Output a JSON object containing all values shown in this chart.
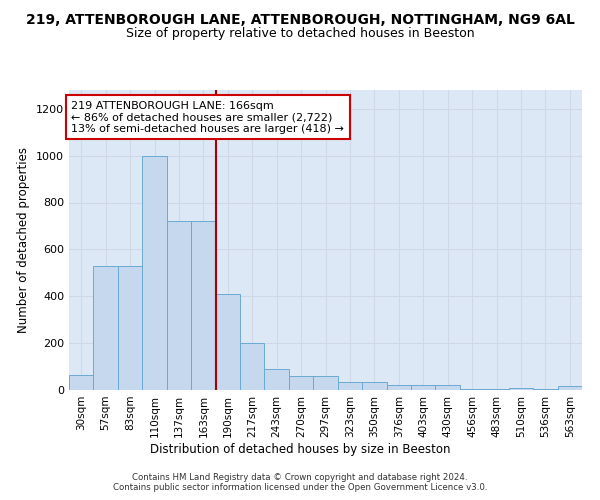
{
  "title1": "219, ATTENBOROUGH LANE, ATTENBOROUGH, NOTTINGHAM, NG9 6AL",
  "title2": "Size of property relative to detached houses in Beeston",
  "xlabel": "Distribution of detached houses by size in Beeston",
  "ylabel": "Number of detached properties",
  "footer1": "Contains HM Land Registry data © Crown copyright and database right 2024.",
  "footer2": "Contains public sector information licensed under the Open Government Licence v3.0.",
  "categories": [
    "30sqm",
    "57sqm",
    "83sqm",
    "110sqm",
    "137sqm",
    "163sqm",
    "190sqm",
    "217sqm",
    "243sqm",
    "270sqm",
    "297sqm",
    "323sqm",
    "350sqm",
    "376sqm",
    "403sqm",
    "430sqm",
    "456sqm",
    "483sqm",
    "510sqm",
    "536sqm",
    "563sqm"
  ],
  "values": [
    65,
    530,
    530,
    1000,
    720,
    720,
    410,
    200,
    90,
    60,
    60,
    35,
    35,
    20,
    20,
    20,
    5,
    5,
    10,
    5,
    15
  ],
  "bar_color": "#c5d8ed",
  "bar_edge_color": "#6aaad4",
  "vline_position": 5.5,
  "vline_color": "#aa0000",
  "annotation_line1": "219 ATTENBOROUGH LANE: 166sqm",
  "annotation_line2": "← 86% of detached houses are smaller (2,722)",
  "annotation_line3": "13% of semi-detached houses are larger (418) →",
  "annotation_box_color": "#cc0000",
  "ylim": [
    0,
    1280
  ],
  "yticks": [
    0,
    200,
    400,
    600,
    800,
    1000,
    1200
  ],
  "grid_color": "#d0d8e8",
  "bg_color": "#dce8f5",
  "title1_fontsize": 10,
  "title2_fontsize": 9,
  "tick_fontsize": 7.5,
  "annotation_fontsize": 8,
  "xlabel_fontsize": 8.5,
  "ylabel_fontsize": 8.5
}
